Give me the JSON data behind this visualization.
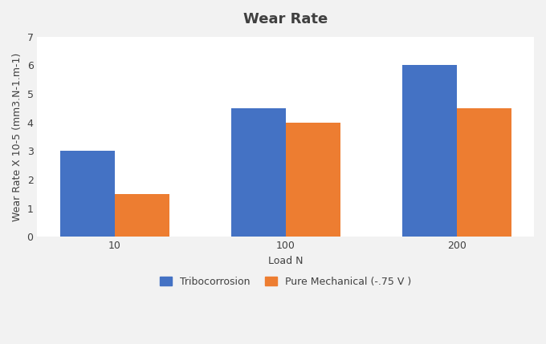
{
  "title": "Wear Rate",
  "xlabel": "Load N",
  "ylabel": "Wear Rate X 10-5 (mm3.N-1.m-1)",
  "categories": [
    "10",
    "100",
    "200"
  ],
  "series": {
    "Tribocorrosion": [
      3.0,
      4.5,
      6.0
    ],
    "Pure Mechanical (-.75 V )": [
      1.5,
      4.0,
      4.5
    ]
  },
  "colors": {
    "Tribocorrosion": "#4472C4",
    "Pure Mechanical (-.75 V )": "#ED7D31"
  },
  "ylim": [
    0,
    7
  ],
  "yticks": [
    0,
    1,
    2,
    3,
    4,
    5,
    6,
    7
  ],
  "bar_width": 0.32,
  "background_color": "#f2f2f2",
  "plot_bg_color": "#ffffff",
  "grid_color": "#ffffff",
  "title_fontsize": 13,
  "axis_label_fontsize": 9,
  "tick_fontsize": 9,
  "legend_fontsize": 9,
  "text_color": "#404040",
  "title_color": "#404040"
}
